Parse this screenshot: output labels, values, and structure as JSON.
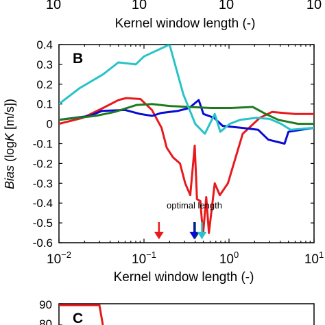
{
  "top_panel": {
    "tick_labels": [
      "10",
      "10",
      "10",
      "10"
    ],
    "xlabel": "Kernel window length (-)"
  },
  "bottom_panel": {
    "panel_label": "C",
    "tick_labels": [
      "90",
      "80"
    ]
  },
  "chart_data": {
    "type": "line",
    "panel_label": "B",
    "xlabel": "Kernel window length (-)",
    "ylabel_italic": "Bias",
    "ylabel_rest": " (log",
    "ylabel_var": "K",
    "ylabel_unit": " [m/s])",
    "x_scale": "log",
    "xlim": [
      0.01,
      10
    ],
    "ylim": [
      -0.6,
      0.4
    ],
    "x_ticks": [
      {
        "value": 0.01,
        "base": "10",
        "exp": "−2"
      },
      {
        "value": 0.1,
        "base": "10",
        "exp": "−1"
      },
      {
        "value": 1,
        "base": "10",
        "exp": "0"
      },
      {
        "value": 10,
        "base": "10",
        "exp": "1"
      }
    ],
    "y_ticks": [
      {
        "value": 0.4,
        "label": "0.4"
      },
      {
        "value": 0.3,
        "label": "0.3"
      },
      {
        "value": 0.2,
        "label": "0.2"
      },
      {
        "value": 0.1,
        "label": "0.1"
      },
      {
        "value": 0,
        "label": "0"
      },
      {
        "value": -0.1,
        "label": "-0.1"
      },
      {
        "value": -0.2,
        "label": "-0.2"
      },
      {
        "value": -0.3,
        "label": "-0.3"
      },
      {
        "value": -0.4,
        "label": "-0.4"
      },
      {
        "value": -0.5,
        "label": "-0.5"
      },
      {
        "value": -0.6,
        "label": "-0.6"
      }
    ],
    "grid": false,
    "series": [
      {
        "color": "#e8191c",
        "points": [
          [
            0.01,
            0.0
          ],
          [
            0.019,
            0.03
          ],
          [
            0.033,
            0.08
          ],
          [
            0.05,
            0.12
          ],
          [
            0.062,
            0.13
          ],
          [
            0.091,
            0.125
          ],
          [
            0.124,
            0.07
          ],
          [
            0.161,
            -0.02
          ],
          [
            0.185,
            -0.12
          ],
          [
            0.22,
            -0.17
          ],
          [
            0.265,
            -0.2
          ],
          [
            0.305,
            -0.3
          ],
          [
            0.35,
            -0.36
          ],
          [
            0.395,
            -0.11
          ],
          [
            0.42,
            -0.38
          ],
          [
            0.46,
            -0.39
          ],
          [
            0.495,
            -0.56
          ],
          [
            0.54,
            -0.37
          ],
          [
            0.58,
            -0.55
          ],
          [
            0.68,
            -0.3
          ],
          [
            0.78,
            -0.36
          ],
          [
            0.97,
            -0.3
          ],
          [
            1.45,
            -0.05
          ],
          [
            2.3,
            0.03
          ],
          [
            3.2,
            0.06
          ],
          [
            6.0,
            0.05
          ],
          [
            10,
            0.05
          ]
        ]
      },
      {
        "color": "#0a0ad4",
        "points": [
          [
            0.01,
            0.02
          ],
          [
            0.023,
            0.04
          ],
          [
            0.032,
            0.065
          ],
          [
            0.06,
            0.07
          ],
          [
            0.09,
            0.05
          ],
          [
            0.125,
            0.04
          ],
          [
            0.16,
            0.055
          ],
          [
            0.25,
            0.065
          ],
          [
            0.34,
            0.08
          ],
          [
            0.44,
            0.12
          ],
          [
            0.5,
            0.05
          ],
          [
            0.67,
            0.03
          ],
          [
            0.84,
            -0.01
          ],
          [
            1.05,
            -0.015
          ],
          [
            1.4,
            -0.02
          ],
          [
            2.2,
            -0.03
          ],
          [
            2.9,
            -0.08
          ],
          [
            4.5,
            -0.1
          ],
          [
            5.0,
            -0.04
          ],
          [
            10,
            -0.02
          ]
        ]
      },
      {
        "color": "#1f7a1f",
        "points": [
          [
            0.01,
            0.02
          ],
          [
            0.027,
            0.04
          ],
          [
            0.045,
            0.06
          ],
          [
            0.082,
            0.095
          ],
          [
            0.125,
            0.1
          ],
          [
            0.2,
            0.09
          ],
          [
            0.34,
            0.085
          ],
          [
            0.61,
            0.08
          ],
          [
            1.05,
            0.08
          ],
          [
            1.9,
            0.085
          ],
          [
            2.7,
            0.05
          ],
          [
            3.8,
            0.02
          ],
          [
            6.5,
            0.0
          ],
          [
            10,
            0.0
          ]
        ]
      },
      {
        "color": "#27c3c8",
        "points": [
          [
            0.01,
            0.1
          ],
          [
            0.0175,
            0.18
          ],
          [
            0.033,
            0.25
          ],
          [
            0.05,
            0.31
          ],
          [
            0.08,
            0.3
          ],
          [
            0.1,
            0.34
          ],
          [
            0.2,
            0.4
          ],
          [
            0.29,
            0.15
          ],
          [
            0.4,
            0.0
          ],
          [
            0.52,
            -0.05
          ],
          [
            0.68,
            0.05
          ],
          [
            0.79,
            -0.04
          ],
          [
            1.02,
            0.0
          ],
          [
            1.35,
            0.02
          ],
          [
            2.1,
            0.03
          ],
          [
            3.0,
            0.025
          ],
          [
            4.1,
            0.0
          ],
          [
            5.3,
            -0.03
          ],
          [
            10,
            -0.02
          ]
        ]
      }
    ],
    "annotations": [
      {
        "text": "optimal length",
        "x": 0.83,
        "y": -0.41
      }
    ],
    "markers": [
      {
        "kind": "arrow",
        "color": "#e8191c",
        "x": 0.15
      },
      {
        "kind": "arrow",
        "color": "#1f7a1f",
        "x": 0.4
      },
      {
        "kind": "arrow",
        "color": "#0a0ad4",
        "x": 0.39
      },
      {
        "kind": "arrow",
        "color": "#27c3c8",
        "x": 0.48
      }
    ]
  }
}
